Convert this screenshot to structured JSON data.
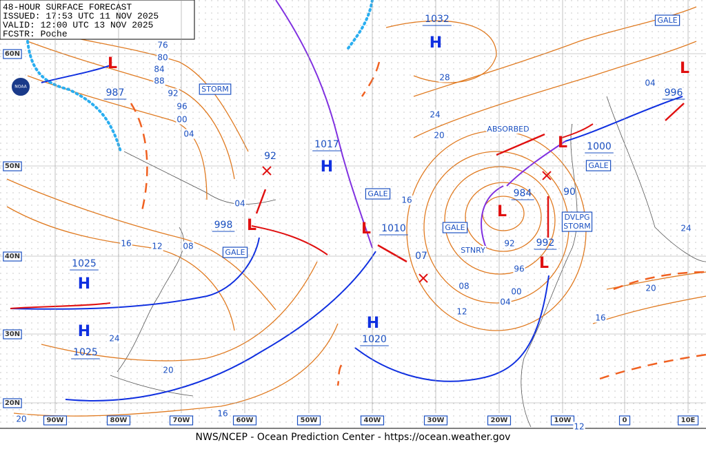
{
  "header": {
    "lines": [
      "48-HOUR SURFACE FORECAST",
      "ISSUED: 17:53 UTC 11 NOV 2025",
      "VALID:  12:00 UTC 13 NOV 2025",
      "FCSTR:  Poche"
    ]
  },
  "logo": "NOAA",
  "footer": "NWS/NCEP - Ocean Prediction Center - https://ocean.weather.gov",
  "latitude_labels": [
    "60N",
    "50N",
    "40N",
    "30N",
    "20N"
  ],
  "longitude_labels": [
    "90W",
    "80W",
    "70W",
    "60W",
    "50W",
    "40W",
    "30W",
    "20W",
    "10W",
    "0",
    "10E"
  ],
  "pressure_centers": [
    {
      "symbol": "H",
      "value": "1032"
    },
    {
      "symbol": "L",
      "value": "987"
    },
    {
      "symbol": "H",
      "value": "1017"
    },
    {
      "symbol": "L",
      "value": "998"
    },
    {
      "symbol": "L",
      "value": "1010"
    },
    {
      "symbol": "H",
      "value": "1025"
    },
    {
      "symbol": "H",
      "value": "1025"
    },
    {
      "symbol": "H",
      "value": "1020"
    },
    {
      "symbol": "L",
      "value": "984"
    },
    {
      "symbol": "L",
      "value": "1000"
    },
    {
      "symbol": "L",
      "value": "996"
    },
    {
      "symbol": "L",
      "value": "992"
    }
  ],
  "forecast_points": [
    "92",
    "90",
    "07"
  ],
  "isobar_labels": [
    "76",
    "80",
    "84",
    "88",
    "92",
    "96",
    "00",
    "04",
    "04",
    "16",
    "12",
    "08",
    "24",
    "20",
    "16",
    "20",
    "28",
    "24",
    "20",
    "16",
    "92",
    "96",
    "00",
    "04",
    "08",
    "12",
    "04",
    "24",
    "20",
    "16",
    "12"
  ],
  "warnings": [
    "STORM",
    "GALE",
    "GALE",
    "GALE",
    "GALE",
    "GALE"
  ],
  "developing_storm": [
    "DVLPG",
    "STORM"
  ],
  "annotations": [
    "ABSORBED",
    "STNRY"
  ]
}
